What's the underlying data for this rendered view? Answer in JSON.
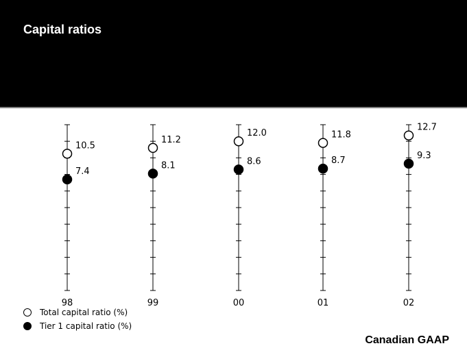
{
  "header": {
    "title": "Capital ratios"
  },
  "chart_data": {
    "type": "scatter",
    "categories": [
      "98",
      "99",
      "00",
      "01",
      "02"
    ],
    "series": [
      {
        "name": "Total capital ratio (%)",
        "marker": "open",
        "values": [
          10.5,
          11.2,
          12.0,
          11.8,
          12.7
        ]
      },
      {
        "name": "Tier 1 capital ratio (%)",
        "marker": "filled",
        "values": [
          7.4,
          8.1,
          8.6,
          8.7,
          9.3
        ]
      }
    ],
    "ylim": [
      -6,
      14
    ],
    "grid": false,
    "legend_position": "bottom-left",
    "colors": {
      "background": "#ffffff",
      "header": "#000000",
      "marks": "#000000"
    }
  },
  "legend": {
    "items": [
      {
        "label": "Total capital ratio (%)",
        "marker": "open"
      },
      {
        "label": "Tier 1 capital ratio (%)",
        "marker": "filled"
      }
    ]
  },
  "footnote": "Canadian GAAP"
}
